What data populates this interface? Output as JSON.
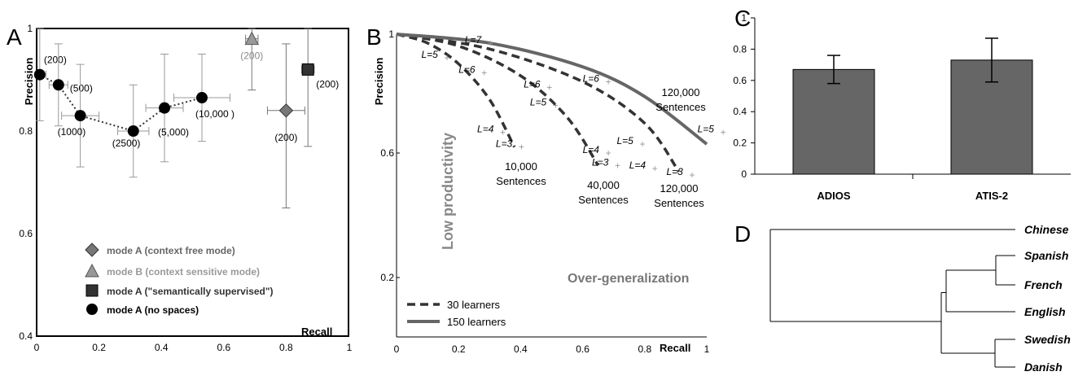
{
  "colors": {
    "ink": "#000000",
    "dark": "#333333",
    "gray": "#777777",
    "light_gray": "#999999",
    "bar_fill": "#666666"
  },
  "panel_labels": {
    "a": "A",
    "b": "B",
    "c": "C",
    "d": "D"
  },
  "chart_data": [
    {
      "panel": "A",
      "type": "scatter",
      "title": "",
      "xlabel": "Recall",
      "ylabel": "Precision",
      "xlim": [
        0,
        1
      ],
      "ylim": [
        0.4,
        1
      ],
      "x_ticks": [
        "0",
        "0.2",
        "0.4",
        "0.6",
        "0.8",
        "1"
      ],
      "y_ticks": [
        "0.4",
        "0.6",
        "0.8",
        "1"
      ],
      "grid": false,
      "legend_position": "bottom-center",
      "series": [
        {
          "name": "mode A (context free mode)",
          "marker": "diamond",
          "color": "#777777",
          "points": [
            {
              "x": 0.8,
              "y": 0.84,
              "xerr": [
                0.06,
                0.06
              ],
              "yerr": [
                0.19,
                0.13
              ],
              "label": "(200)"
            }
          ]
        },
        {
          "name": "mode B (context sensitive mode)",
          "marker": "triangle",
          "color": "#999999",
          "points": [
            {
              "x": 0.69,
              "y": 0.98,
              "xerr": [
                0.02,
                0.02
              ],
              "yerr": [
                0.1,
                0.02
              ],
              "label": "(200)"
            }
          ]
        },
        {
          "name": "mode A (\"semantically supervised\")",
          "marker": "square",
          "color": "#333333",
          "points": [
            {
              "x": 0.87,
              "y": 0.92,
              "xerr": [
                0.02,
                0.02
              ],
              "yerr": [
                0.15,
                0.08
              ],
              "label": "(200)"
            }
          ]
        },
        {
          "name": "mode A (no spaces)",
          "marker": "circle",
          "color": "#000000",
          "points": [
            {
              "x": 0.01,
              "y": 0.91,
              "xerr": [
                0.01,
                0.02
              ],
              "yerr": [
                0.09,
                0.09
              ],
              "label": "(200)"
            },
            {
              "x": 0.07,
              "y": 0.89,
              "xerr": [
                0.03,
                0.03
              ],
              "yerr": [
                0.08,
                0.08
              ],
              "label": "(500)"
            },
            {
              "x": 0.14,
              "y": 0.83,
              "xerr": [
                0.06,
                0.06
              ],
              "yerr": [
                0.1,
                0.1
              ],
              "label": "(1000)"
            },
            {
              "x": 0.31,
              "y": 0.8,
              "xerr": [
                0.05,
                0.05
              ],
              "yerr": [
                0.09,
                0.09
              ],
              "label": "(2500)"
            },
            {
              "x": 0.41,
              "y": 0.845,
              "xerr": [
                0.06,
                0.06
              ],
              "yerr": [
                0.105,
                0.105
              ],
              "label": "(5,000)"
            },
            {
              "x": 0.53,
              "y": 0.865,
              "xerr": [
                0.09,
                0.09
              ],
              "yerr": [
                0.085,
                0.085
              ],
              "label": "(10,000 )"
            }
          ]
        }
      ]
    },
    {
      "panel": "B",
      "type": "line",
      "title": "",
      "xlabel": "Recall",
      "ylabel": "Precision",
      "xlim": [
        0,
        1
      ],
      "ylim": [
        0,
        1
      ],
      "y_scale_note": "compressed scale",
      "x_ticks": [
        "0",
        "0.2",
        "0.4",
        "0.6",
        "0.8",
        "Recall",
        "1"
      ],
      "y_ticks": [
        "0.2",
        "0.6",
        "1"
      ],
      "grid": false,
      "legend_position": "bottom-left",
      "legend": [
        {
          "name": "30 learners",
          "style": "dashed"
        },
        {
          "name": "150 learners",
          "style": "solid"
        }
      ],
      "region_labels": [
        "Low productivity",
        "Over-generalization"
      ],
      "series": [
        {
          "name": "10,000 Sentences",
          "style": "dashed",
          "learners": 30,
          "label": "10,000\nSentences",
          "points": [
            [
              0.0,
              1.0
            ],
            [
              0.1,
              0.97
            ],
            [
              0.2,
              0.9
            ],
            [
              0.3,
              0.78
            ],
            [
              0.38,
              0.62
            ]
          ]
        },
        {
          "name": "40,000 Sentences",
          "style": "dashed",
          "learners": 30,
          "label": "40,000\nSentences",
          "points": [
            [
              0.0,
              1.0
            ],
            [
              0.2,
              0.96
            ],
            [
              0.4,
              0.86
            ],
            [
              0.55,
              0.72
            ],
            [
              0.65,
              0.56
            ]
          ]
        },
        {
          "name": "120,000 Sentences (30)",
          "style": "dashed",
          "learners": 30,
          "label": "120,000\nSentences",
          "points": [
            [
              0.0,
              1.0
            ],
            [
              0.3,
              0.95
            ],
            [
              0.6,
              0.84
            ],
            [
              0.8,
              0.7
            ],
            [
              0.91,
              0.54
            ]
          ]
        },
        {
          "name": "120,000 Sentences (150)",
          "style": "solid",
          "learners": 150,
          "label": "120,000\nSentences",
          "points": [
            [
              0.0,
              1.0
            ],
            [
              0.3,
              0.97
            ],
            [
              0.6,
              0.89
            ],
            [
              0.8,
              0.79
            ],
            [
              1.0,
              0.63
            ]
          ]
        }
      ],
      "annotations": [
        {
          "text": "L=7",
          "x": 0.22,
          "y": 0.97
        },
        {
          "text": "L=5",
          "x": 0.08,
          "y": 0.92
        },
        {
          "text": "L=6",
          "x": 0.2,
          "y": 0.87
        },
        {
          "text": "L=6",
          "x": 0.41,
          "y": 0.82
        },
        {
          "text": "L=5",
          "x": 0.43,
          "y": 0.76
        },
        {
          "text": "L=6",
          "x": 0.6,
          "y": 0.84
        },
        {
          "text": "L=4",
          "x": 0.26,
          "y": 0.67
        },
        {
          "text": "L=3",
          "x": 0.32,
          "y": 0.62
        },
        {
          "text": "L=4",
          "x": 0.6,
          "y": 0.6
        },
        {
          "text": "L=3",
          "x": 0.63,
          "y": 0.56
        },
        {
          "text": "L=5",
          "x": 0.71,
          "y": 0.63
        },
        {
          "text": "L=4",
          "x": 0.75,
          "y": 0.55
        },
        {
          "text": "L=3",
          "x": 0.87,
          "y": 0.53
        },
        {
          "text": "L=5",
          "x": 0.97,
          "y": 0.67
        }
      ]
    },
    {
      "panel": "C",
      "type": "bar",
      "title": "",
      "xlabel": "",
      "ylabel": "",
      "categories": [
        "ADIOS",
        "ATIS-2"
      ],
      "values": [
        0.67,
        0.73
      ],
      "errors": [
        0.09,
        0.14
      ],
      "ylim": [
        0,
        1
      ],
      "y_ticks": [
        "0",
        "0.2",
        "0.4",
        "0.6",
        "0.8",
        "1"
      ],
      "grid": false
    },
    {
      "panel": "D",
      "type": "dendrogram",
      "leaves": [
        "Chinese",
        "Spanish",
        "French",
        "English",
        "Swedish",
        "Danish"
      ]
    }
  ]
}
